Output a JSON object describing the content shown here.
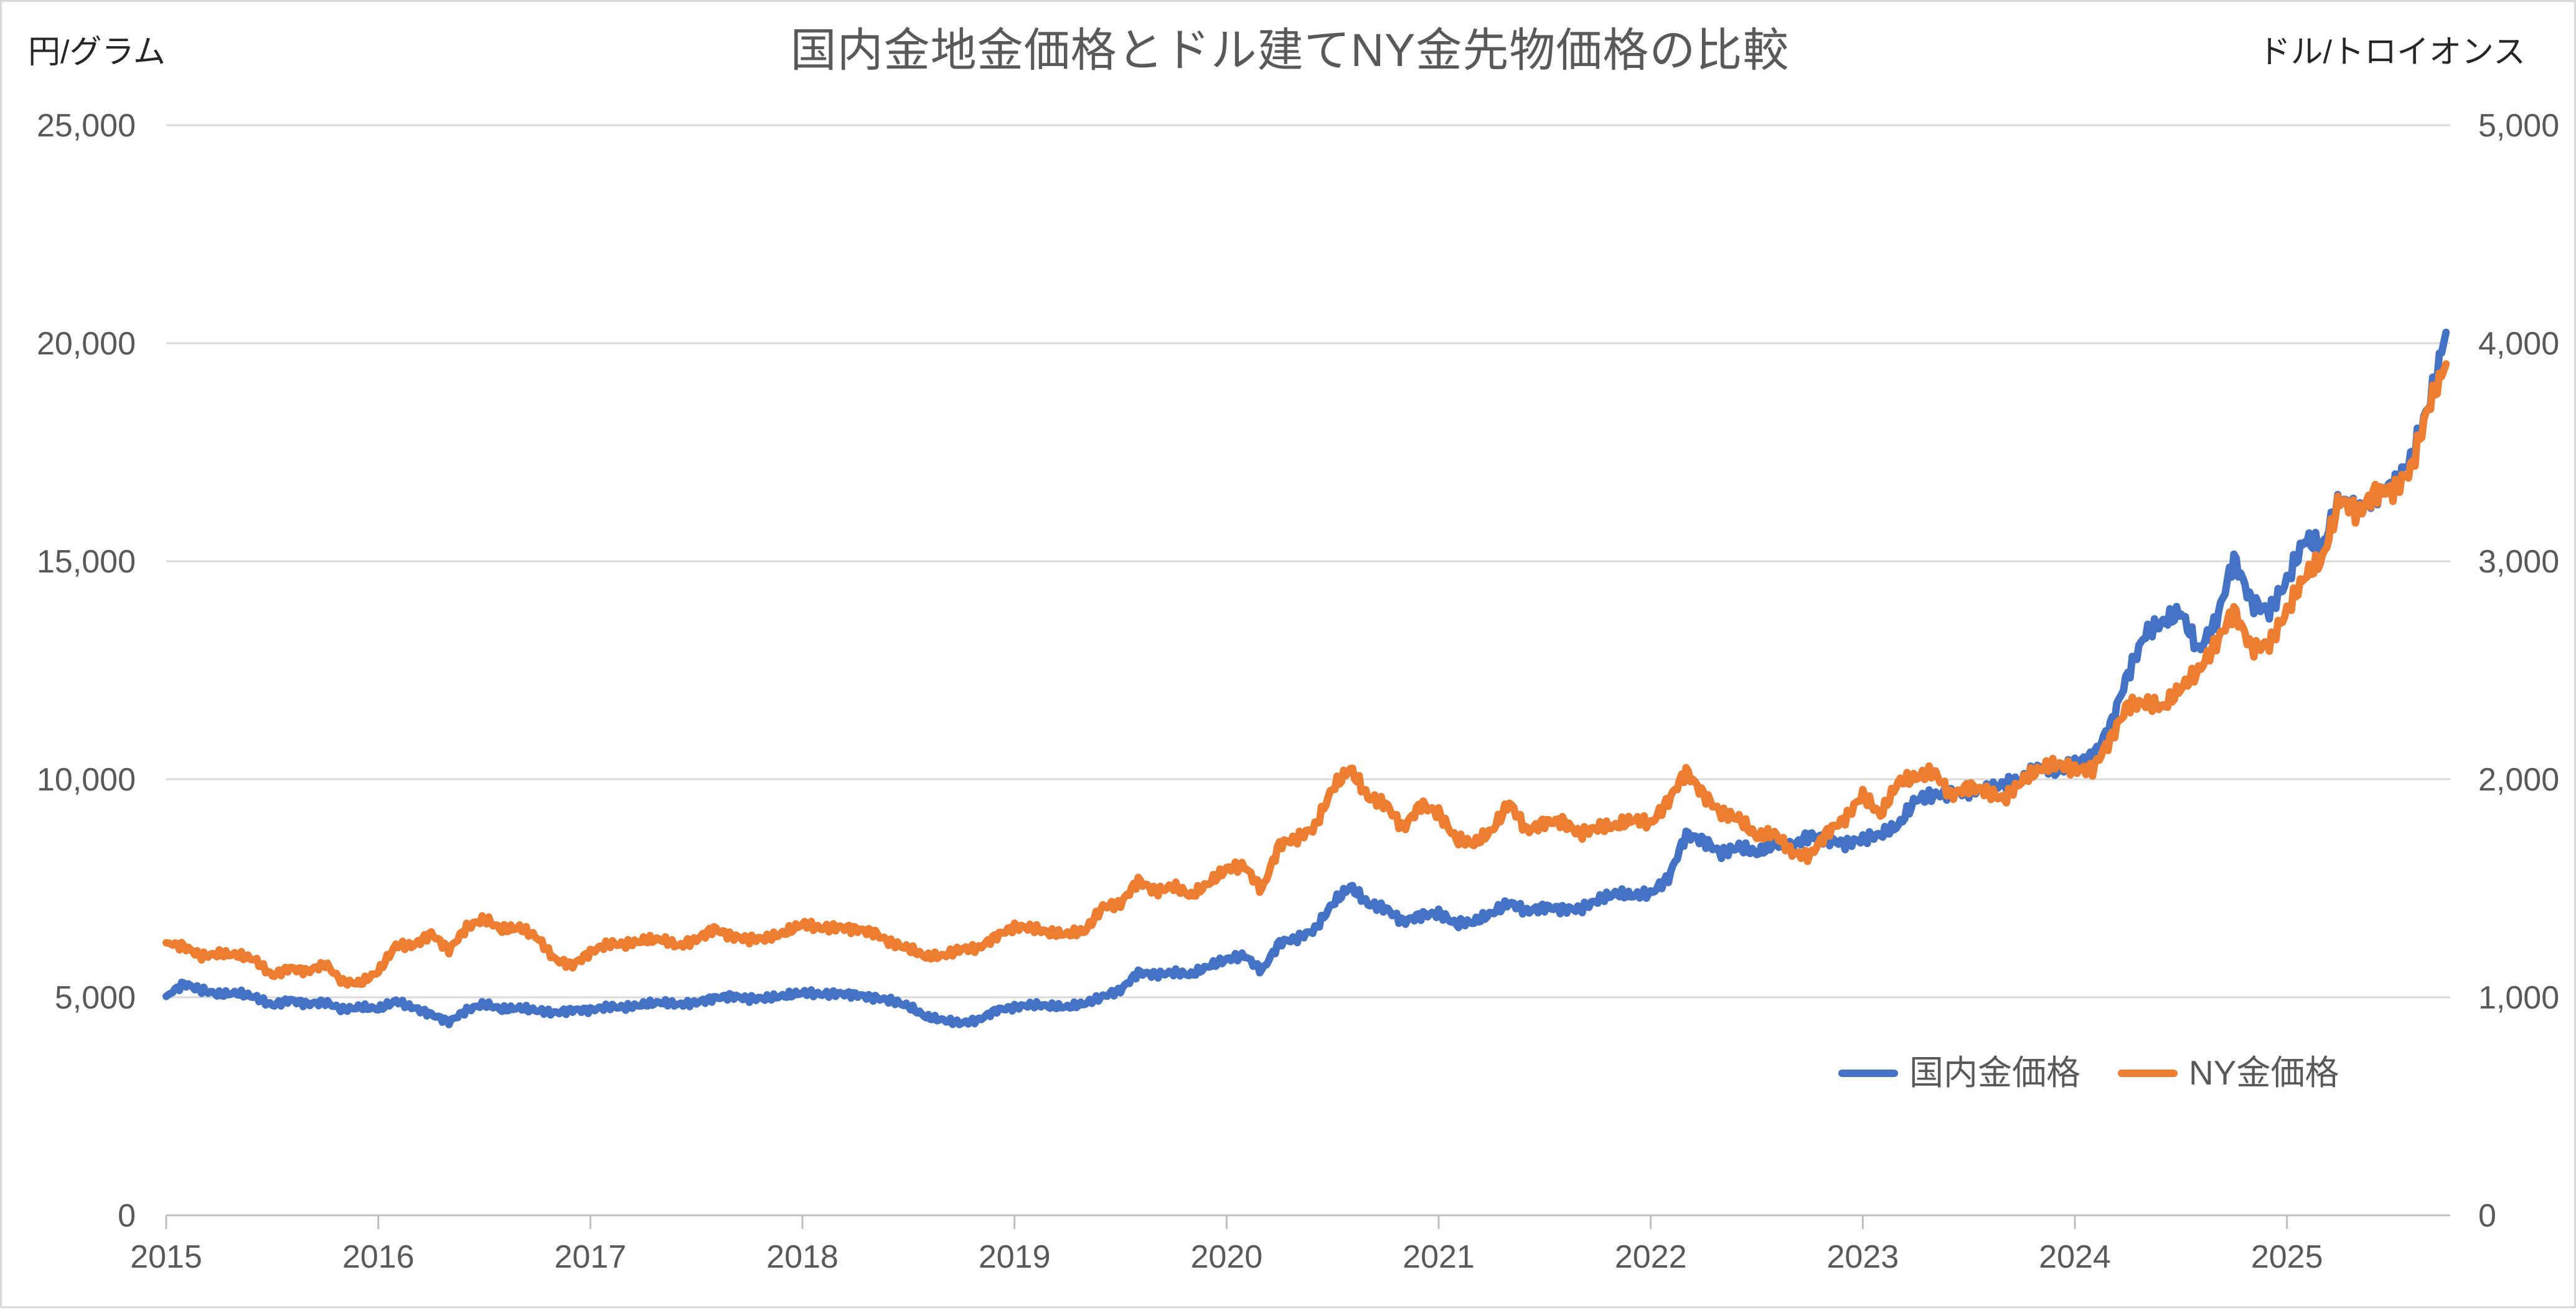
{
  "header": {
    "title": "国内金地金価格とドル建てNY金先物価格の比較"
  },
  "axes": {
    "left": {
      "unit": "円/グラム",
      "tick_labels": [
        "25,000",
        "20,000",
        "15,000",
        "10,000",
        "5,000",
        "0"
      ],
      "tick_values": [
        25000,
        20000,
        15000,
        10000,
        5000,
        0
      ],
      "max": 25000
    },
    "right": {
      "unit": "ドル/トロイオンス",
      "tick_labels": [
        "5,000",
        "4,000",
        "3,000",
        "2,000",
        "1,000",
        "0"
      ],
      "tick_values": [
        5000,
        4000,
        3000,
        2000,
        1000,
        0
      ],
      "max": 5000
    },
    "x": {
      "tick_labels": [
        "2015",
        "2016",
        "2017",
        "2018",
        "2019",
        "2020",
        "2021",
        "2022",
        "2023",
        "2024",
        "2025"
      ],
      "tick_values": [
        2015,
        2016,
        2017,
        2018,
        2019,
        2020,
        2021,
        2022,
        2023,
        2024,
        2025
      ]
    }
  },
  "legend": {
    "position": "inside-bottom-right",
    "items": [
      {
        "label": "国内金価格",
        "color": "#4472C4"
      },
      {
        "label": "NY金価格",
        "color": "#ED7D31"
      }
    ]
  },
  "style": {
    "gridline_color": "#D9D9D9",
    "axis_color": "#BFBFBF",
    "tick_label_color": "#595959",
    "title_color": "#595959",
    "background": "#FFFFFF"
  },
  "chart_data": {
    "type": "line",
    "title": "国内金地金価格とドル建てNY金先物価格の比較",
    "xlabel": "",
    "ylabel_left": "円/グラム",
    "ylabel_right": "ドル/トロイオンス",
    "ylim_left": [
      0,
      25000
    ],
    "ylim_right": [
      0,
      5000
    ],
    "xlim_years": [
      2015.0,
      2025.77
    ],
    "grid": true,
    "legend_position": "inside-bottom-right",
    "x_encoding": {
      "start": "2015-01",
      "frequency": "monthly",
      "count": 130,
      "end": "2025-10"
    },
    "series": [
      {
        "name": "国内金価格",
        "axis": "left",
        "unit": "円/グラム",
        "color": "#4472C4",
        "values": [
          5020,
          5300,
          5150,
          5050,
          5080,
          4990,
          4800,
          4920,
          4830,
          4870,
          4700,
          4760,
          4720,
          4900,
          4750,
          4600,
          4430,
          4700,
          4850,
          4720,
          4760,
          4700,
          4650,
          4720,
          4720,
          4800,
          4780,
          4850,
          4900,
          4850,
          4900,
          5000,
          5050,
          4980,
          5000,
          5050,
          5120,
          5080,
          5100,
          5070,
          5000,
          4930,
          4800,
          4550,
          4470,
          4400,
          4480,
          4700,
          4760,
          4820,
          4780,
          4760,
          4840,
          5000,
          5150,
          5550,
          5500,
          5550,
          5500,
          5700,
          5850,
          5950,
          5600,
          6250,
          6350,
          6550,
          7150,
          7550,
          7150,
          7050,
          6750,
          6900,
          6950,
          6700,
          6750,
          6950,
          7200,
          7000,
          7100,
          7050,
          7050,
          7250,
          7400,
          7350,
          7400,
          7750,
          8750,
          8600,
          8300,
          8450,
          8300,
          8500,
          8450,
          8700,
          8600,
          8500,
          8600,
          8700,
          8900,
          9500,
          9600,
          9650,
          9700,
          9750,
          9850,
          9950,
          10250,
          10150,
          10350,
          10500,
          11200,
          12400,
          13350,
          13600,
          13850,
          12950,
          13650,
          15100,
          14100,
          13900,
          14600,
          15550,
          15400,
          16500,
          16200,
          16600,
          16800,
          17400,
          18600,
          20250
        ]
      },
      {
        "name": "NY金価格",
        "axis": "right",
        "unit": "ドル/トロイオンス",
        "color": "#ED7D31",
        "values": [
          1250,
          1230,
          1185,
          1195,
          1190,
          1170,
          1095,
          1130,
          1115,
          1150,
          1065,
          1062,
          1115,
          1235,
          1235,
          1290,
          1215,
          1320,
          1360,
          1310,
          1320,
          1275,
          1175,
          1150,
          1210,
          1250,
          1245,
          1265,
          1270,
          1240,
          1270,
          1320,
          1285,
          1270,
          1275,
          1300,
          1340,
          1320,
          1325,
          1315,
          1300,
          1250,
          1225,
          1185,
          1190,
          1220,
          1225,
          1280,
          1320,
          1315,
          1290,
          1285,
          1300,
          1410,
          1425,
          1530,
          1480,
          1505,
          1460,
          1520,
          1585,
          1600,
          1490,
          1700,
          1730,
          1780,
          1960,
          2050,
          1920,
          1890,
          1780,
          1890,
          1850,
          1730,
          1710,
          1770,
          1900,
          1770,
          1810,
          1815,
          1755,
          1785,
          1790,
          1820,
          1800,
          1905,
          2040,
          1930,
          1845,
          1820,
          1735,
          1750,
          1660,
          1645,
          1755,
          1815,
          1925,
          1830,
          1980,
          2000,
          2030,
          1920,
          1960,
          1940,
          1900,
          1985,
          2040,
          2065,
          2040,
          2045,
          2180,
          2340,
          2350,
          2330,
          2420,
          2500,
          2630,
          2780,
          2610,
          2630,
          2780,
          2940,
          3020,
          3300,
          3230,
          3330,
          3340,
          3430,
          3720,
          3905
        ]
      }
    ]
  }
}
